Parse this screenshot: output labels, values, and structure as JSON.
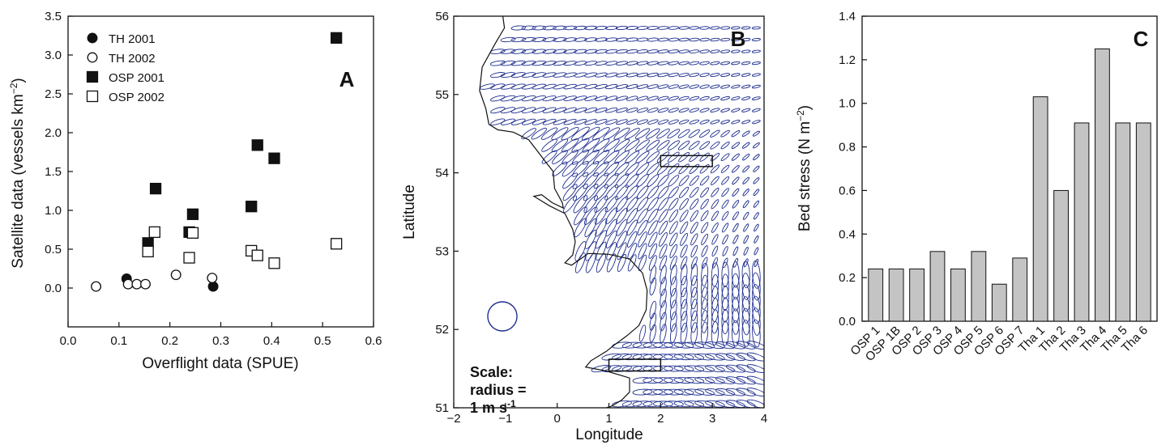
{
  "chart_data": [
    {
      "panel": "A",
      "type": "scatter",
      "xlabel": "Overflight data (SPUE)",
      "ylabel": "Satellite data (vessels km",
      "ylabel_exp": "−2",
      "ylabel_close": ")",
      "xlim": [
        0.0,
        0.6
      ],
      "ylim": [
        -0.5,
        3.5
      ],
      "xticks": [
        "0.0",
        "0.1",
        "0.2",
        "0.3",
        "0.4",
        "0.5",
        "0.6"
      ],
      "yticks": [
        "0.0",
        "0.5",
        "1.0",
        "1.5",
        "2.0",
        "2.5",
        "3.0",
        "3.5"
      ],
      "legend_position": "top-left",
      "series": [
        {
          "name": "TH 2001",
          "marker": "circle-filled",
          "points": [
            [
              0.115,
              0.12
            ],
            [
              0.285,
              0.02
            ]
          ]
        },
        {
          "name": "TH 2002",
          "marker": "circle-open",
          "points": [
            [
              0.055,
              0.02
            ],
            [
              0.118,
              0.05
            ],
            [
              0.135,
              0.05
            ],
            [
              0.152,
              0.05
            ],
            [
              0.212,
              0.17
            ],
            [
              0.283,
              0.13
            ]
          ]
        },
        {
          "name": "OSP 2001",
          "marker": "square-filled",
          "points": [
            [
              0.157,
              0.58
            ],
            [
              0.172,
              1.28
            ],
            [
              0.238,
              0.72
            ],
            [
              0.245,
              0.95
            ],
            [
              0.36,
              1.05
            ],
            [
              0.372,
              1.84
            ],
            [
              0.405,
              1.67
            ],
            [
              0.527,
              3.22
            ]
          ]
        },
        {
          "name": "OSP 2002",
          "marker": "square-open",
          "points": [
            [
              0.157,
              0.47
            ],
            [
              0.17,
              0.72
            ],
            [
              0.238,
              0.39
            ],
            [
              0.245,
              0.71
            ],
            [
              0.36,
              0.48
            ],
            [
              0.372,
              0.42
            ],
            [
              0.405,
              0.32
            ],
            [
              0.527,
              0.57
            ]
          ]
        }
      ]
    },
    {
      "panel": "B",
      "type": "map",
      "xlabel": "Longitude",
      "ylabel": "Latitude",
      "xlim": [
        -2,
        4
      ],
      "ylim": [
        51,
        56
      ],
      "xticks": [
        "−2",
        "−1",
        "0",
        "1",
        "2",
        "3",
        "4"
      ],
      "yticks": [
        "51",
        "52",
        "53",
        "54",
        "55",
        "56"
      ],
      "scale_note": {
        "line1": "Scale:",
        "line2": "radius =",
        "line3": "1 m s",
        "exp": "-1"
      },
      "boxes": [
        {
          "lon": [
            2.0,
            3.0
          ],
          "lat": [
            54.08,
            54.22
          ]
        },
        {
          "lon": [
            1.0,
            2.0
          ],
          "lat": [
            51.47,
            51.62
          ]
        }
      ],
      "ellipse_color": "#1f2f8f"
    },
    {
      "panel": "C",
      "type": "bar",
      "ylabel": "Bed stress (N m",
      "ylabel_exp": "−2",
      "ylabel_close": ")",
      "ylim": [
        0.0,
        1.4
      ],
      "yticks": [
        "0.0",
        "0.2",
        "0.4",
        "0.6",
        "0.8",
        "1.0",
        "1.2",
        "1.4"
      ],
      "categories": [
        "OSP 1",
        "OSP 1B",
        "OSP 2",
        "OSP 3",
        "OSP 4",
        "OSP 5",
        "OSP 6",
        "OSP 7",
        "Tha 1",
        "Tha 2",
        "Tha 3",
        "Tha 4",
        "Tha 5",
        "Tha 6"
      ],
      "values": [
        0.24,
        0.24,
        0.24,
        0.32,
        0.24,
        0.32,
        0.17,
        0.29,
        1.03,
        0.6,
        0.91,
        1.25,
        0.91,
        0.91
      ],
      "bar_color": "#c4c4c4"
    }
  ]
}
